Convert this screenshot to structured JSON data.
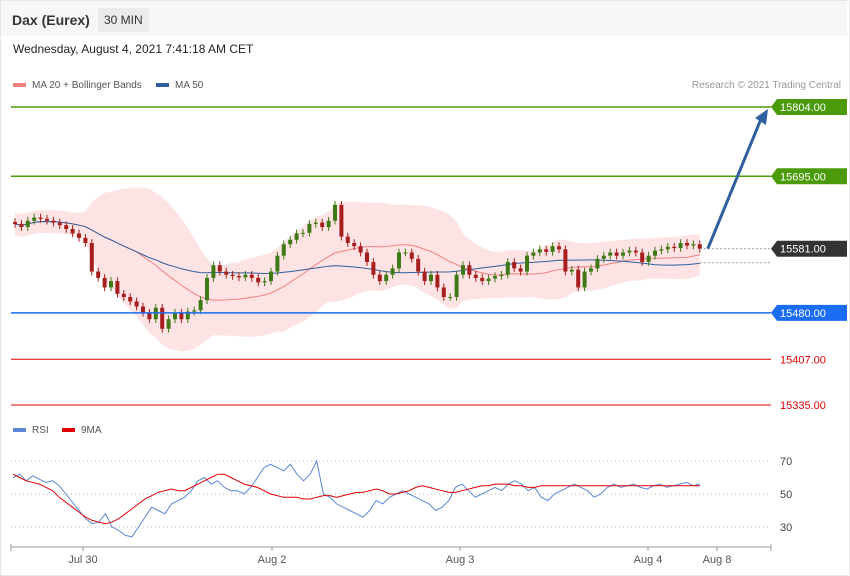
{
  "header": {
    "instrument": "Dax (Eurex)",
    "timeframe": "30 MIN",
    "datetime": "Wednesday, August 4, 2021 7:41:18 AM CET"
  },
  "legend": {
    "ma20": {
      "label": "MA 20 + Bollinger Bands",
      "color": "#f08080"
    },
    "ma50": {
      "label": "MA 50",
      "color": "#2f5f9e"
    }
  },
  "credit": "Research © 2021 Trading Central",
  "rsi_legend": {
    "rsi": {
      "label": "RSI",
      "color": "#5b86d6"
    },
    "ma9": {
      "label": "9MA",
      "color": "#e00000"
    }
  },
  "chart_data": [
    {
      "type": "candlestick",
      "ylim": [
        15290,
        15840
      ],
      "levels": [
        {
          "value": 15804.0,
          "label": "15804.00",
          "style": "resistance",
          "color": "#4a9a0a"
        },
        {
          "value": 15695.0,
          "label": "15695.00",
          "style": "resistance",
          "color": "#4a9a0a"
        },
        {
          "value": 15581.0,
          "label": "15581.00",
          "style": "last",
          "color": "#333333"
        },
        {
          "value": 15480.0,
          "label": "15480.00",
          "style": "pivot",
          "color": "#1a6cf0"
        },
        {
          "value": 15407.0,
          "label": "15407.00",
          "style": "support",
          "color": "#e00000"
        },
        {
          "value": 15335.0,
          "label": "15335.00",
          "style": "support",
          "color": "#e00000"
        }
      ],
      "forecast_arrow": {
        "from": 15581,
        "to": 15804
      },
      "close": [
        15620,
        15615,
        15625,
        15630,
        15628,
        15625,
        15622,
        15618,
        15612,
        15605,
        15598,
        15590,
        15545,
        15535,
        15520,
        15530,
        15510,
        15505,
        15498,
        15490,
        15480,
        15470,
        15488,
        15455,
        15470,
        15480,
        15470,
        15482,
        15484,
        15500,
        15535,
        15555,
        15545,
        15540,
        15538,
        15536,
        15540,
        15535,
        15528,
        15530,
        15545,
        15570,
        15588,
        15595,
        15605,
        15606,
        15620,
        15622,
        15615,
        15625,
        15650,
        15600,
        15590,
        15585,
        15575,
        15560,
        15540,
        15530,
        15540,
        15550,
        15575,
        15575,
        15565,
        15545,
        15530,
        15540,
        15520,
        15505,
        15505,
        15540,
        15555,
        15540,
        15535,
        15530,
        15534,
        15538,
        15540,
        15560,
        15550,
        15545,
        15570,
        15575,
        15580,
        15576,
        15585,
        15580,
        15545,
        15548,
        15520,
        15545,
        15550,
        15565,
        15570,
        15575,
        15570,
        15575,
        15578,
        15575,
        15560,
        15570,
        15578,
        15580,
        15584,
        15582,
        15590,
        15586,
        15588,
        15581
      ],
      "rsi": {
        "levels": [
          70,
          50,
          30
        ],
        "rsi": [
          60,
          62,
          58,
          61,
          59,
          57,
          58,
          55,
          50,
          45,
          40,
          35,
          32,
          33,
          38,
          30,
          28,
          25,
          24,
          30,
          36,
          42,
          40,
          38,
          44,
          46,
          48,
          52,
          58,
          60,
          56,
          58,
          54,
          52,
          52,
          50,
          54,
          60,
          66,
          68,
          66,
          64,
          68,
          62,
          58,
          62,
          70,
          50,
          48,
          44,
          42,
          40,
          38,
          36,
          40,
          46,
          44,
          48,
          50,
          52,
          50,
          48,
          46,
          44,
          40,
          42,
          46,
          54,
          56,
          52,
          48,
          50,
          52,
          54,
          52,
          56,
          58,
          56,
          52,
          54,
          48,
          46,
          50,
          52,
          54,
          56,
          54,
          52,
          48,
          50,
          54,
          56,
          54,
          55,
          56,
          54,
          53,
          55,
          56,
          54,
          55,
          56,
          57,
          55,
          56
        ],
        "ma9": [
          62,
          60,
          58,
          57,
          56,
          54,
          52,
          48,
          45,
          42,
          39,
          36,
          34,
          33,
          32,
          33,
          35,
          38,
          41,
          44,
          47,
          49,
          51,
          52,
          53,
          52,
          52,
          54,
          56,
          58,
          60,
          62,
          62,
          60,
          58,
          56,
          55,
          54,
          52,
          50,
          49,
          48,
          48,
          48,
          47,
          47,
          48,
          49,
          49,
          48,
          49,
          50,
          51,
          51,
          52,
          53,
          52,
          50,
          50,
          51,
          52,
          54,
          55,
          54,
          53,
          52,
          51,
          51,
          52,
          53,
          54,
          55,
          55,
          56,
          56,
          56,
          55,
          55,
          54,
          54,
          55,
          55,
          55,
          55,
          55,
          55,
          55,
          55,
          55,
          55,
          55,
          55,
          55,
          55,
          55,
          55,
          55,
          55,
          55,
          55,
          55,
          55,
          55,
          55,
          55
        ]
      },
      "x_ticks": [
        "Jul 30",
        "Aug 2",
        "Aug 3",
        "Aug 4",
        "Aug 8"
      ]
    }
  ]
}
